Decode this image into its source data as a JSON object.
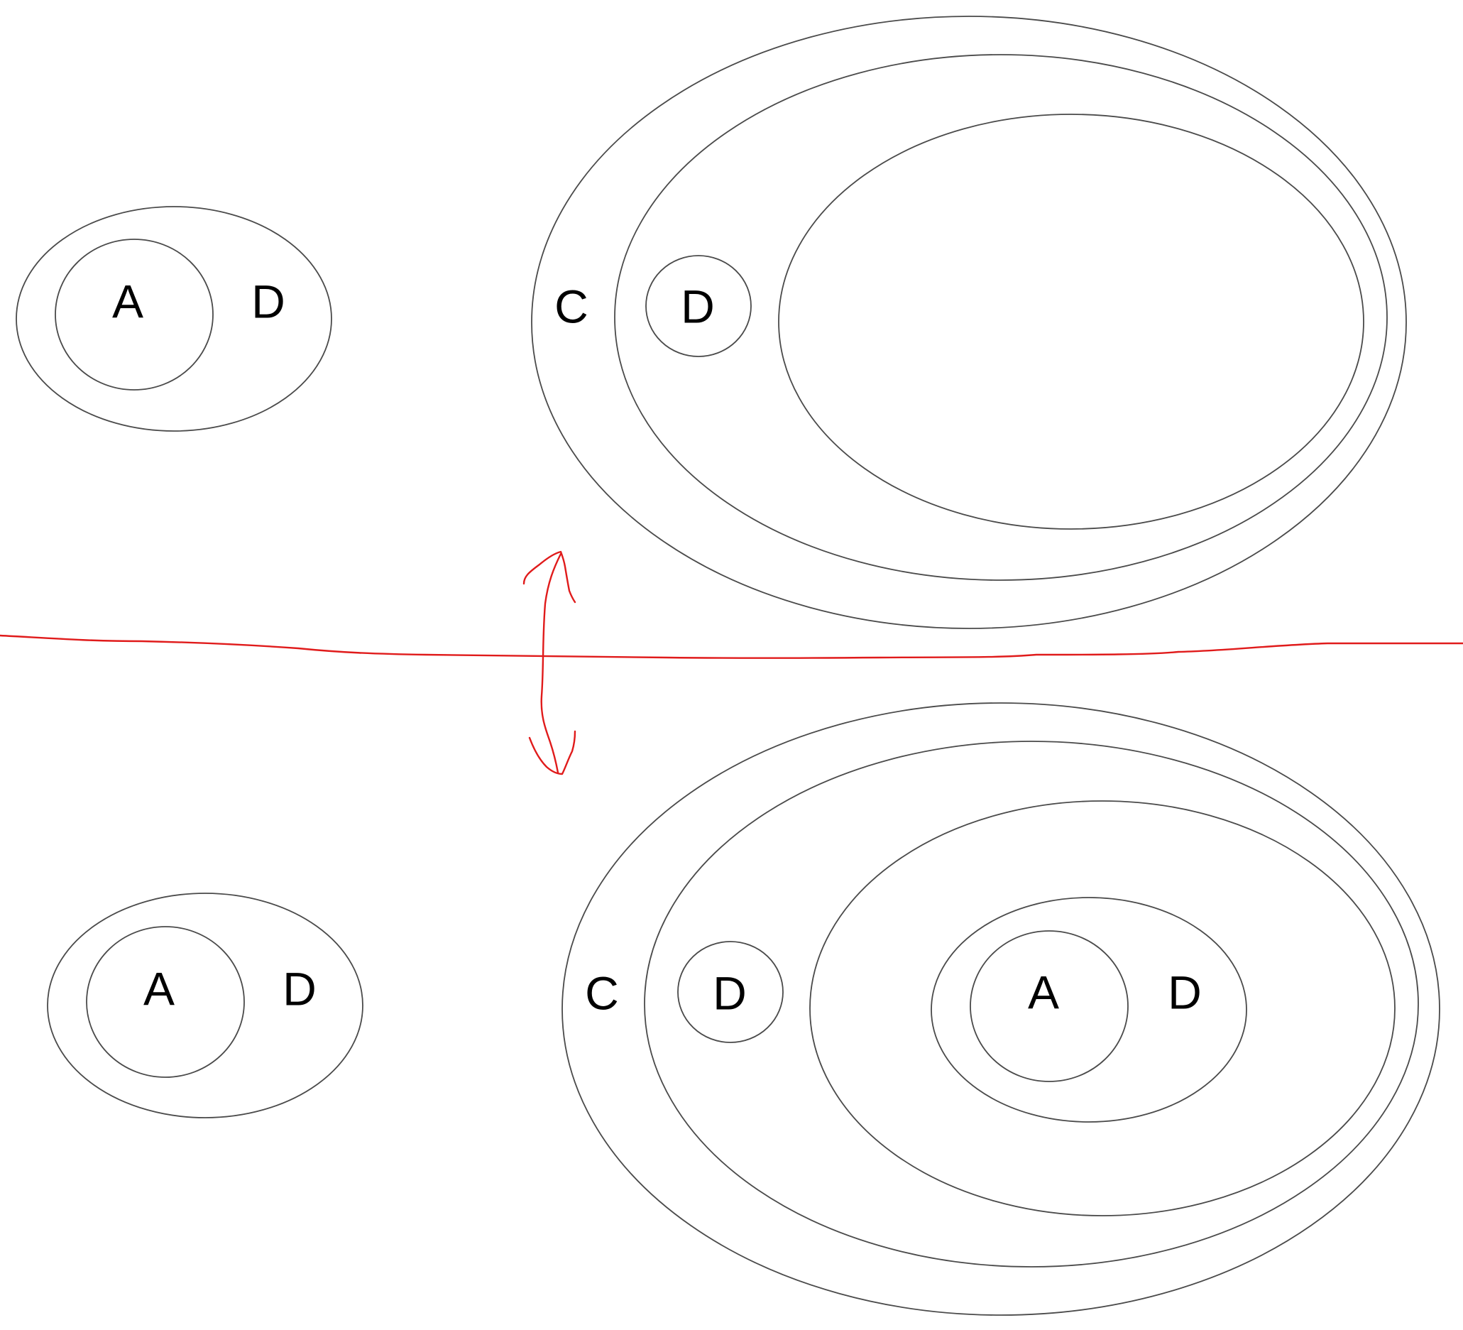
{
  "colors": {
    "outline": "#4a4a4a",
    "text": "#000000",
    "annotation": "#e01b1b",
    "background": "#ffffff"
  },
  "top": {
    "left_group": {
      "inner_label": "A",
      "outer_label": "D"
    },
    "right_group": {
      "outer_label": "C",
      "small_circle_label": "D"
    }
  },
  "bottom": {
    "left_group": {
      "inner_label": "A",
      "outer_label": "D"
    },
    "right_group": {
      "outer_label": "C",
      "small_circle_label": "D",
      "nested_inner_label": "A",
      "nested_outer_label": "D"
    }
  }
}
